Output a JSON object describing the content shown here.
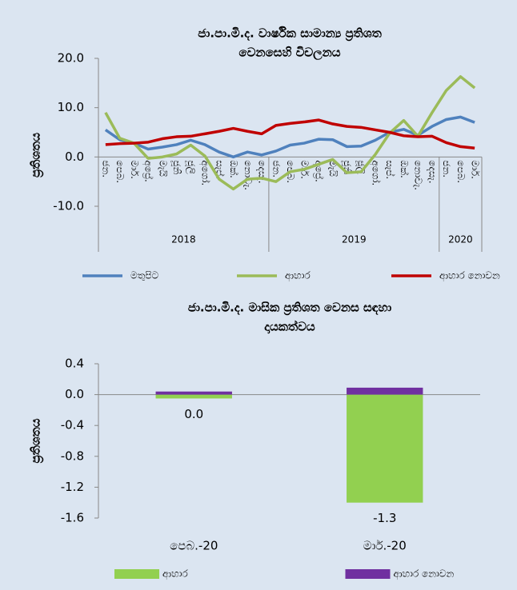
{
  "chart_data": [
    {
      "type": "line",
      "title": [
        "ජා.පා.මි.ද. වාර්ෂික සාමාන්‍ය ප්‍රතිශත",
        "වෙනසෙහි විචලනය"
      ],
      "ylabel": "ප්‍රතිශතය",
      "categories": [
        "ජන.",
        "පෙබ.",
        "මාර්.",
        "අප්‍රේ.",
        "මැයි",
        "ජූනි",
        "ජූලි",
        "අගෝ.",
        "සැප්.",
        "ඔක්.",
        "නොවැ.",
        "දෙසැ.",
        "ජන.",
        "පෙබ.",
        "මාර්.",
        "අප්‍රේ.",
        "මැයි",
        "ජූනි",
        "ජූලි",
        "අගෝ.",
        "සැප්.",
        "ඔක්.",
        "නොවැ.",
        "දෙසැ.",
        "ජන.",
        "පෙබ.",
        "මාර්."
      ],
      "years": [
        "2018",
        "2018",
        "2018",
        "2018",
        "2018",
        "2018",
        "2018",
        "2018",
        "2018",
        "2018",
        "2018",
        "2018",
        "2019",
        "2019",
        "2019",
        "2019",
        "2019",
        "2019",
        "2019",
        "2019",
        "2019",
        "2019",
        "2019",
        "2019",
        "2020",
        "2020",
        "2020"
      ],
      "series": [
        {
          "name": "මතුපිට",
          "color": "#4f81bd",
          "values": [
            5.5,
            3.5,
            2.8,
            1.6,
            2.0,
            2.5,
            3.4,
            2.5,
            1.0,
            0.0,
            1.0,
            0.4,
            1.2,
            2.4,
            2.8,
            3.6,
            3.5,
            2.1,
            2.2,
            3.4,
            5.0,
            5.6,
            4.4,
            6.2,
            7.6,
            8.1,
            7.0
          ]
        },
        {
          "name": "ආහාර",
          "color": "#9bbb59",
          "values": [
            9.0,
            3.8,
            2.8,
            -0.3,
            0.0,
            0.6,
            2.4,
            0.2,
            -4.5,
            -6.5,
            -4.5,
            -4.3,
            -5.0,
            -3.0,
            -2.5,
            -1.5,
            -0.5,
            -3.2,
            -3.0,
            0.5,
            4.8,
            7.4,
            4.2,
            9.0,
            13.5,
            16.3,
            14.0
          ]
        },
        {
          "name": "ආහාර නොවන",
          "color": "#c00000",
          "values": [
            2.5,
            2.7,
            2.8,
            3.0,
            3.7,
            4.1,
            4.2,
            4.7,
            5.2,
            5.8,
            5.2,
            4.7,
            6.4,
            6.8,
            7.1,
            7.5,
            6.7,
            6.2,
            6.0,
            5.5,
            5.0,
            4.3,
            4.1,
            4.2,
            2.9,
            2.1,
            1.8
          ]
        }
      ],
      "ylim": [
        -10,
        20
      ],
      "yticks": [
        {
          "value": -10,
          "label": "-10.0"
        },
        {
          "value": 0,
          "label": "0.0"
        },
        {
          "value": 10,
          "label": "10.0"
        },
        {
          "value": 20,
          "label": "20.0"
        }
      ],
      "grid": false,
      "legend": "bottom"
    },
    {
      "type": "bar",
      "title": [
        "ජා.පා.මි.ද. මාසික ප්‍රතිශත වෙනස සඳහා",
        "දායකත්වය"
      ],
      "ylabel": "ප්‍රතිශතය",
      "categories": [
        "පෙබ.-20",
        "මාර්.-20"
      ],
      "series": [
        {
          "name": "ආහාර",
          "color": "#92d050",
          "values": [
            -0.05,
            -1.4
          ]
        },
        {
          "name": "ආහාර නොවන",
          "color": "#7030a0",
          "values": [
            0.04,
            0.09
          ]
        }
      ],
      "totals": [
        0.0,
        -1.3
      ],
      "total_labels": [
        "0.0",
        "-1.3"
      ],
      "ylim": [
        -1.6,
        0.4
      ],
      "yticks": [
        {
          "value": -1.6,
          "label": "-1.6"
        },
        {
          "value": -1.2,
          "label": "-1.2"
        },
        {
          "value": -0.8,
          "label": "-0.8"
        },
        {
          "value": -0.4,
          "label": "-0.4"
        },
        {
          "value": 0,
          "label": "0.0"
        },
        {
          "value": 0.4,
          "label": "0.4"
        }
      ],
      "grid": false,
      "legend": "bottom"
    }
  ]
}
